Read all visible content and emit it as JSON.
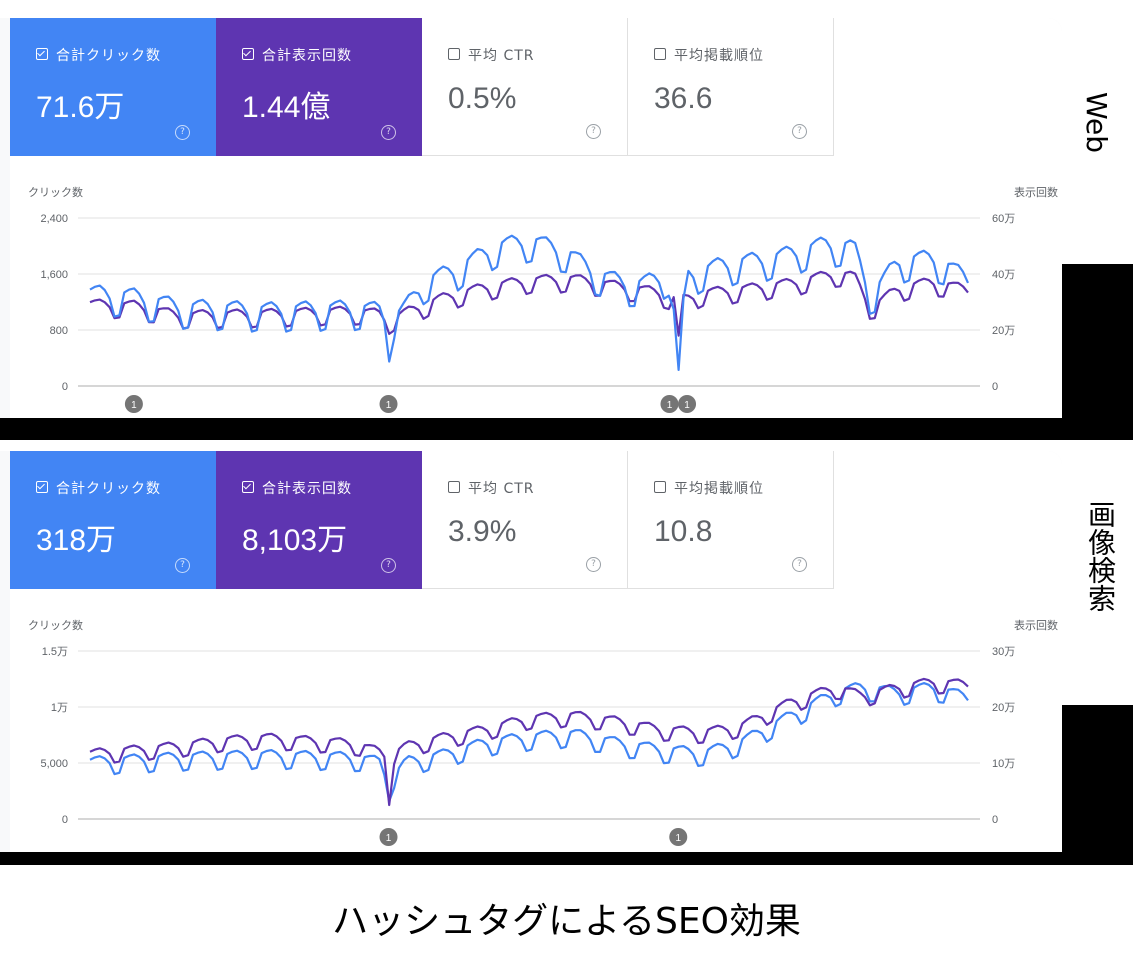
{
  "side_labels": {
    "web": "Web",
    "image": "画像検索"
  },
  "caption": "ハッシュタグによるSEO効果",
  "colors": {
    "clicks": "#4285f4",
    "impressions": "#5e35b1",
    "grid": "#e0e0e0"
  },
  "panels": [
    {
      "id": "web",
      "cards": [
        {
          "label": "合計クリック数",
          "value": "71.6万",
          "checked": true,
          "style": "blue"
        },
        {
          "label": "合計表示回数",
          "value": "1.44億",
          "checked": true,
          "style": "purple"
        },
        {
          "label": "平均 CTR",
          "value": "0.5%",
          "checked": false,
          "style": "plain"
        },
        {
          "label": "平均掲載順位",
          "value": "36.6",
          "checked": false,
          "style": "plain"
        }
      ]
    },
    {
      "id": "image",
      "cards": [
        {
          "label": "合計クリック数",
          "value": "318万",
          "checked": true,
          "style": "blue"
        },
        {
          "label": "合計表示回数",
          "value": "8,103万",
          "checked": true,
          "style": "purple"
        },
        {
          "label": "平均 CTR",
          "value": "3.9%",
          "checked": false,
          "style": "plain"
        },
        {
          "label": "平均掲載順位",
          "value": "10.8",
          "checked": false,
          "style": "plain"
        }
      ]
    }
  ],
  "chart_data": [
    {
      "type": "line",
      "title": "Web",
      "ylabel_left": "クリック数",
      "ylabel_right": "表示回数",
      "left_ticks": [
        "2,400",
        "1,600",
        "800",
        "0"
      ],
      "right_ticks": [
        "60万",
        "40万",
        "20万",
        "0"
      ],
      "ylim_left": [
        0,
        2400
      ],
      "ylim_right": [
        0,
        600000
      ],
      "n_points": 180,
      "annotations": [
        {
          "position": 0.05,
          "count": "1"
        },
        {
          "position": 0.34,
          "count": "1"
        },
        {
          "position": 0.66,
          "count": "1"
        },
        {
          "position": 0.68,
          "count": "1"
        }
      ],
      "series": [
        {
          "name": "合計クリック数",
          "color": "#4285f4",
          "axis": "left",
          "anchors": [
            [
              0,
              1250
            ],
            [
              0.05,
              1200
            ],
            [
              0.1,
              1050
            ],
            [
              0.2,
              1000
            ],
            [
              0.3,
              1030
            ],
            [
              0.33,
              1000
            ],
            [
              0.34,
              800
            ],
            [
              0.36,
              1050
            ],
            [
              0.38,
              1400
            ],
            [
              0.42,
              1600
            ],
            [
              0.46,
              1900
            ],
            [
              0.5,
              2000
            ],
            [
              0.54,
              1850
            ],
            [
              0.58,
              1500
            ],
            [
              0.62,
              1350
            ],
            [
              0.66,
              1500
            ],
            [
              0.67,
              400
            ],
            [
              0.68,
              1500
            ],
            [
              0.72,
              1650
            ],
            [
              0.78,
              1750
            ],
            [
              0.84,
              1950
            ],
            [
              0.87,
              1900
            ],
            [
              0.89,
              1200
            ],
            [
              0.92,
              1700
            ],
            [
              0.96,
              1750
            ],
            [
              1.0,
              1450
            ]
          ],
          "weekly_amplitude": 230,
          "dips": [
            [
              0.34,
              350
            ],
            [
              0.669,
              230
            ]
          ]
        },
        {
          "name": "合計表示回数",
          "color": "#5e35b1",
          "axis": "right",
          "anchors": [
            [
              0,
              280000
            ],
            [
              0.05,
              275000
            ],
            [
              0.1,
              240000
            ],
            [
              0.2,
              245000
            ],
            [
              0.3,
              255000
            ],
            [
              0.33,
              245000
            ],
            [
              0.34,
              220000
            ],
            [
              0.36,
              250000
            ],
            [
              0.4,
              300000
            ],
            [
              0.45,
              340000
            ],
            [
              0.5,
              365000
            ],
            [
              0.55,
              370000
            ],
            [
              0.6,
              345000
            ],
            [
              0.65,
              320000
            ],
            [
              0.67,
              290000
            ],
            [
              0.7,
              320000
            ],
            [
              0.75,
              335000
            ],
            [
              0.8,
              355000
            ],
            [
              0.85,
              390000
            ],
            [
              0.87,
              380000
            ],
            [
              0.89,
              265000
            ],
            [
              0.92,
              335000
            ],
            [
              0.96,
              360000
            ],
            [
              1.0,
              330000
            ]
          ],
          "weekly_amplitude": 35000,
          "dips": [
            [
              0.669,
              180000
            ]
          ]
        }
      ]
    },
    {
      "type": "line",
      "title": "画像検索",
      "ylabel_left": "クリック数",
      "ylabel_right": "表示回数",
      "left_ticks": [
        "1.5万",
        "1万",
        "5,000",
        "0"
      ],
      "right_ticks": [
        "30万",
        "20万",
        "10万",
        "0"
      ],
      "ylim_left": [
        0,
        15000
      ],
      "ylim_right": [
        0,
        300000
      ],
      "n_points": 180,
      "annotations": [
        {
          "position": 0.34,
          "count": "1"
        },
        {
          "position": 0.67,
          "count": "1"
        }
      ],
      "series": [
        {
          "name": "合計クリック数",
          "color": "#4285f4",
          "axis": "left",
          "anchors": [
            [
              0,
              4800
            ],
            [
              0.1,
              5200
            ],
            [
              0.2,
              5400
            ],
            [
              0.3,
              5200
            ],
            [
              0.33,
              4800
            ],
            [
              0.34,
              3000
            ],
            [
              0.36,
              4800
            ],
            [
              0.4,
              5400
            ],
            [
              0.45,
              6500
            ],
            [
              0.5,
              7000
            ],
            [
              0.55,
              7300
            ],
            [
              0.6,
              6500
            ],
            [
              0.65,
              5900
            ],
            [
              0.7,
              5600
            ],
            [
              0.74,
              6500
            ],
            [
              0.8,
              9000
            ],
            [
              0.85,
              11000
            ],
            [
              0.88,
              11500
            ],
            [
              0.92,
              11000
            ],
            [
              0.96,
              11500
            ],
            [
              1.0,
              10500
            ]
          ],
          "weekly_amplitude": 900,
          "dips": [
            [
              0.34,
              1600
            ]
          ]
        },
        {
          "name": "合計表示回数",
          "color": "#5e35b1",
          "axis": "right",
          "anchors": [
            [
              0,
              112000
            ],
            [
              0.1,
              125000
            ],
            [
              0.15,
              135000
            ],
            [
              0.2,
              140000
            ],
            [
              0.25,
              135000
            ],
            [
              0.3,
              130000
            ],
            [
              0.33,
              115000
            ],
            [
              0.34,
              105000
            ],
            [
              0.36,
              125000
            ],
            [
              0.4,
              140000
            ],
            [
              0.45,
              155000
            ],
            [
              0.5,
              175000
            ],
            [
              0.55,
              180000
            ],
            [
              0.6,
              170000
            ],
            [
              0.65,
              155000
            ],
            [
              0.7,
              150000
            ],
            [
              0.74,
              160000
            ],
            [
              0.8,
              205000
            ],
            [
              0.85,
              230000
            ],
            [
              0.88,
              215000
            ],
            [
              0.92,
              230000
            ],
            [
              0.96,
              240000
            ],
            [
              1.0,
              235000
            ]
          ],
          "weekly_amplitude": 15000,
          "dips": [
            [
              0.34,
              25000
            ]
          ]
        }
      ]
    }
  ]
}
